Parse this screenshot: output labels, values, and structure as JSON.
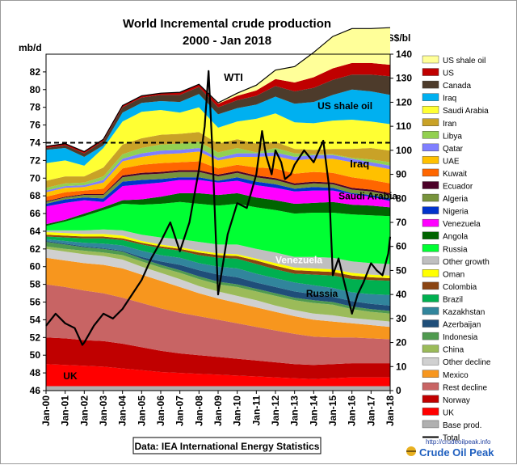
{
  "chart_data": {
    "type": "area",
    "title_line1": "World Incremental crude production",
    "title_line2": "2000 - Jan 2018",
    "left_unit": "mb/d",
    "right_unit": "US$/bl",
    "y_left": {
      "min": 46,
      "max": 84,
      "ticks": [
        46,
        48,
        50,
        52,
        54,
        56,
        58,
        60,
        62,
        64,
        66,
        68,
        70,
        72,
        74,
        76,
        78,
        80,
        82
      ]
    },
    "y_right": {
      "min": 0,
      "max": 140,
      "ticks": [
        0,
        10,
        20,
        30,
        40,
        50,
        60,
        70,
        80,
        90,
        100,
        110,
        120,
        130,
        140
      ]
    },
    "x_ticks": [
      "Jan-00",
      "Jan-01",
      "Jan-02",
      "Jan-03",
      "Jan-04",
      "Jan-05",
      "Jan-06",
      "Jan-07",
      "Jan-08",
      "Jan-09",
      "Jan-10",
      "Jan-11",
      "Jan-12",
      "Jan-13",
      "Jan-14",
      "Jan-15",
      "Jan-16",
      "Jan-17",
      "Jan-18"
    ],
    "reference_line": {
      "value": 74,
      "style": "dashed"
    },
    "years": [
      2000,
      2001,
      2002,
      2003,
      2004,
      2005,
      2006,
      2007,
      2008,
      2009,
      2010,
      2011,
      2012,
      2013,
      2014,
      2015,
      2016,
      2017,
      2018
    ],
    "layers": [
      {
        "name": "Base prod.",
        "color": "#b0b0b0",
        "values": [
          0.5,
          0.5,
          0.5,
          0.5,
          0.5,
          0.5,
          0.5,
          0.5,
          0.5,
          0.5,
          0.5,
          0.5,
          0.5,
          0.5,
          0.5,
          0.5,
          0.5,
          0.5,
          0.5
        ]
      },
      {
        "name": "UK",
        "color": "#ff0000",
        "values": [
          2.5,
          2.4,
          2.3,
          2.2,
          2.0,
          1.8,
          1.6,
          1.5,
          1.4,
          1.3,
          1.2,
          1.1,
          1.0,
          0.9,
          0.8,
          0.9,
          1.0,
          1.0,
          1.0
        ]
      },
      {
        "name": "Norway",
        "color": "#c00000",
        "values": [
          3.0,
          3.0,
          2.9,
          2.9,
          2.8,
          2.6,
          2.4,
          2.2,
          2.1,
          2.0,
          1.9,
          1.8,
          1.7,
          1.6,
          1.6,
          1.6,
          1.6,
          1.6,
          1.6
        ]
      },
      {
        "name": "Rest decline",
        "color": "#c86464",
        "values": [
          6.0,
          5.8,
          5.6,
          5.4,
          5.2,
          5.0,
          4.8,
          4.6,
          4.4,
          4.2,
          4.0,
          3.8,
          3.6,
          3.4,
          3.2,
          3.0,
          2.9,
          2.8,
          2.7
        ]
      },
      {
        "name": "Mexico",
        "color": "#f7961e",
        "values": [
          3.0,
          3.0,
          3.1,
          3.2,
          3.3,
          3.2,
          3.1,
          2.9,
          2.6,
          2.4,
          2.3,
          2.2,
          2.1,
          2.0,
          1.9,
          1.8,
          1.6,
          1.5,
          1.4
        ]
      },
      {
        "name": "Other decline",
        "color": "#d0d0d0",
        "values": [
          1.0,
          1.0,
          1.0,
          1.0,
          1.0,
          0.9,
          0.9,
          0.9,
          0.8,
          0.8,
          0.8,
          0.8,
          0.7,
          0.7,
          0.7,
          0.7,
          0.6,
          0.6,
          0.6
        ]
      },
      {
        "name": "China",
        "color": "#9bbb59",
        "values": [
          0.3,
          0.3,
          0.4,
          0.4,
          0.5,
          0.6,
          0.6,
          0.7,
          0.8,
          0.8,
          1.0,
          1.0,
          1.1,
          1.1,
          1.2,
          1.2,
          1.0,
          0.9,
          0.9
        ]
      },
      {
        "name": "Indonesia",
        "color": "#4f9a4f",
        "values": [
          0.5,
          0.5,
          0.4,
          0.4,
          0.4,
          0.3,
          0.3,
          0.3,
          0.3,
          0.3,
          0.3,
          0.3,
          0.3,
          0.3,
          0.3,
          0.3,
          0.3,
          0.3,
          0.3
        ]
      },
      {
        "name": "Azerbaijan",
        "color": "#1f4e79",
        "values": [
          0.1,
          0.1,
          0.1,
          0.1,
          0.1,
          0.2,
          0.4,
          0.6,
          0.7,
          0.8,
          0.8,
          0.7,
          0.7,
          0.7,
          0.7,
          0.6,
          0.6,
          0.6,
          0.6
        ]
      },
      {
        "name": "Kazakhstan",
        "color": "#31859c",
        "values": [
          0.2,
          0.3,
          0.4,
          0.5,
          0.6,
          0.7,
          0.7,
          0.8,
          0.8,
          0.9,
          1.0,
          1.0,
          1.0,
          1.0,
          1.0,
          1.0,
          1.0,
          1.1,
          1.2
        ]
      },
      {
        "name": "Brazil",
        "color": "#00b050",
        "values": [
          0.3,
          0.4,
          0.5,
          0.6,
          0.6,
          0.7,
          0.8,
          0.8,
          0.9,
          1.0,
          1.1,
          1.1,
          1.0,
          1.0,
          1.2,
          1.4,
          1.5,
          1.6,
          1.6
        ]
      },
      {
        "name": "Colombia",
        "color": "#8b4513",
        "values": [
          0.2,
          0.2,
          0.2,
          0.2,
          0.2,
          0.2,
          0.2,
          0.2,
          0.3,
          0.3,
          0.3,
          0.4,
          0.4,
          0.4,
          0.4,
          0.4,
          0.4,
          0.3,
          0.3
        ]
      },
      {
        "name": "Oman",
        "color": "#ffff00",
        "values": [
          0.3,
          0.3,
          0.3,
          0.3,
          0.3,
          0.2,
          0.2,
          0.2,
          0.2,
          0.2,
          0.2,
          0.2,
          0.3,
          0.3,
          0.3,
          0.3,
          0.3,
          0.3,
          0.3
        ]
      },
      {
        "name": "Other growth",
        "color": "#bfbfbf",
        "values": [
          0.2,
          0.3,
          0.4,
          0.5,
          0.6,
          0.7,
          0.8,
          0.9,
          1.0,
          1.0,
          1.1,
          1.1,
          1.2,
          1.2,
          1.3,
          1.3,
          1.3,
          1.3,
          1.3
        ]
      },
      {
        "name": "Russia",
        "color": "#00ff33",
        "values": [
          0.5,
          1.0,
          1.6,
          2.2,
          3.0,
          3.4,
          3.8,
          4.2,
          4.3,
          4.4,
          4.6,
          4.7,
          4.8,
          4.9,
          5.0,
          5.1,
          5.3,
          5.4,
          5.4
        ]
      },
      {
        "name": "Angola",
        "color": "#006400",
        "values": [
          0.2,
          0.2,
          0.3,
          0.3,
          0.4,
          0.6,
          0.8,
          1.0,
          1.2,
          1.2,
          1.2,
          1.1,
          1.1,
          1.1,
          1.1,
          1.2,
          1.1,
          1.1,
          1.0
        ]
      },
      {
        "name": "Venezuela",
        "color": "#ff00ff",
        "values": [
          2.0,
          1.9,
          1.5,
          0.6,
          1.6,
          1.7,
          1.6,
          1.5,
          1.5,
          1.4,
          1.4,
          1.4,
          1.4,
          1.4,
          1.4,
          1.3,
          1.2,
          1.0,
          0.7
        ]
      },
      {
        "name": "Nigeria",
        "color": "#0033cc",
        "values": [
          0.3,
          0.4,
          0.3,
          0.4,
          0.5,
          0.5,
          0.4,
          0.3,
          0.3,
          0.2,
          0.4,
          0.4,
          0.4,
          0.3,
          0.4,
          0.3,
          0.1,
          0.2,
          0.3
        ]
      },
      {
        "name": "Algeria",
        "color": "#77933c",
        "values": [
          0.2,
          0.2,
          0.3,
          0.4,
          0.5,
          0.6,
          0.6,
          0.6,
          0.6,
          0.5,
          0.5,
          0.5,
          0.5,
          0.4,
          0.4,
          0.4,
          0.4,
          0.4,
          0.4
        ]
      },
      {
        "name": "Ecuador",
        "color": "#4b0028",
        "values": [
          0.1,
          0.1,
          0.1,
          0.1,
          0.2,
          0.2,
          0.2,
          0.2,
          0.2,
          0.2,
          0.2,
          0.2,
          0.2,
          0.2,
          0.2,
          0.2,
          0.2,
          0.2,
          0.2
        ]
      },
      {
        "name": "Kuwait",
        "color": "#ff6600",
        "values": [
          0.5,
          0.5,
          0.4,
          0.6,
          0.8,
          0.9,
          1.0,
          0.9,
          1.0,
          0.7,
          0.7,
          0.9,
          1.1,
          1.1,
          1.1,
          1.1,
          1.2,
          1.1,
          1.1
        ]
      },
      {
        "name": "UAE",
        "color": "#ffc000",
        "values": [
          0.5,
          0.5,
          0.4,
          0.7,
          0.8,
          0.9,
          1.0,
          1.0,
          1.1,
          0.9,
          0.9,
          1.2,
          1.4,
          1.5,
          1.5,
          1.6,
          1.7,
          1.6,
          1.6
        ]
      },
      {
        "name": "Qatar",
        "color": "#7f7fff",
        "values": [
          0.2,
          0.2,
          0.2,
          0.3,
          0.3,
          0.4,
          0.4,
          0.4,
          0.4,
          0.3,
          0.4,
          0.4,
          0.4,
          0.4,
          0.4,
          0.4,
          0.4,
          0.4,
          0.4
        ]
      },
      {
        "name": "Libya",
        "color": "#92d050",
        "values": [
          0.3,
          0.3,
          0.3,
          0.4,
          0.5,
          0.6,
          0.7,
          0.7,
          0.7,
          0.6,
          0.6,
          0.1,
          0.5,
          0.4,
          0.1,
          0.1,
          0.1,
          0.3,
          0.4
        ]
      },
      {
        "name": "Iran",
        "color": "#c9a227",
        "values": [
          0.8,
          0.8,
          0.7,
          1.0,
          1.1,
          1.1,
          1.1,
          1.1,
          1.1,
          1.0,
          1.0,
          1.0,
          0.7,
          0.5,
          0.5,
          0.6,
          1.0,
          1.3,
          1.3
        ]
      },
      {
        "name": "Saudi Arabia",
        "color": "#ffff33",
        "values": [
          2.0,
          1.8,
          1.2,
          2.2,
          2.6,
          3.0,
          2.8,
          2.4,
          2.8,
          1.8,
          2.0,
          2.8,
          3.2,
          3.0,
          3.0,
          3.2,
          3.3,
          3.0,
          3.0
        ]
      },
      {
        "name": "Iraq",
        "color": "#00b0f0",
        "values": [
          1.5,
          1.4,
          1.0,
          0.3,
          1.0,
          1.0,
          1.0,
          1.2,
          1.5,
          1.5,
          1.5,
          1.6,
          1.9,
          2.1,
          2.4,
          2.9,
          3.4,
          3.4,
          3.3
        ]
      },
      {
        "name": "Canada",
        "color": "#4d3b2b",
        "values": [
          0.2,
          0.3,
          0.4,
          0.5,
          0.6,
          0.6,
          0.7,
          0.8,
          0.8,
          0.8,
          0.9,
          1.0,
          1.2,
          1.4,
          1.6,
          1.7,
          1.7,
          1.9,
          2.1
        ]
      },
      {
        "name": "US",
        "color": "#c00000",
        "values": [
          0.2,
          0.2,
          0.2,
          0.2,
          0.2,
          0.2,
          0.2,
          0.3,
          0.3,
          0.4,
          0.5,
          0.6,
          0.8,
          1.0,
          1.2,
          1.3,
          1.3,
          1.3,
          1.3
        ]
      },
      {
        "name": "US shale oil",
        "color": "#ffff99",
        "values": [
          0.0,
          0.0,
          0.0,
          0.0,
          0.0,
          0.0,
          0.0,
          0.0,
          0.0,
          0.1,
          0.3,
          0.6,
          1.0,
          1.8,
          2.8,
          3.6,
          3.9,
          3.9,
          4.2
        ]
      }
    ],
    "total": {
      "name": "Total",
      "color": "#000000"
    },
    "wti": {
      "name": "WTI",
      "color": "#000000",
      "x": [
        2000.0,
        2000.5,
        2001.0,
        2001.5,
        2001.9,
        2002.0,
        2002.5,
        2003.0,
        2003.5,
        2004.0,
        2004.5,
        2005.0,
        2005.5,
        2006.0,
        2006.5,
        2007.0,
        2007.5,
        2008.0,
        2008.3,
        2008.5,
        2008.7,
        2008.9,
        2009.0,
        2009.5,
        2010.0,
        2010.5,
        2011.0,
        2011.3,
        2011.5,
        2011.8,
        2012.0,
        2012.3,
        2012.5,
        2012.8,
        2013.0,
        2013.5,
        2014.0,
        2014.5,
        2014.8,
        2015.0,
        2015.3,
        2015.6,
        2016.0,
        2016.3,
        2016.6,
        2017.0,
        2017.3,
        2017.6,
        2017.9,
        2018.0
      ],
      "y": [
        27,
        32,
        28,
        26,
        19,
        20,
        27,
        32,
        30,
        34,
        40,
        46,
        55,
        62,
        70,
        58,
        70,
        92,
        110,
        133,
        100,
        60,
        40,
        65,
        78,
        76,
        90,
        108,
        98,
        90,
        100,
        95,
        88,
        90,
        94,
        100,
        95,
        104,
        85,
        48,
        55,
        45,
        32,
        40,
        45,
        53,
        50,
        48,
        57,
        64
      ]
    },
    "annotations": [
      "WTI",
      "US shale oil",
      "Iraq",
      "Saudi Arabia",
      "Venezuela",
      "Russia",
      "UK"
    ],
    "legend_placement": "right",
    "source_note": "Data: IEA International Energy Statistics"
  },
  "brand": {
    "url": "http://crudeoilpeak.info",
    "name": "Crude Oil Peak"
  }
}
